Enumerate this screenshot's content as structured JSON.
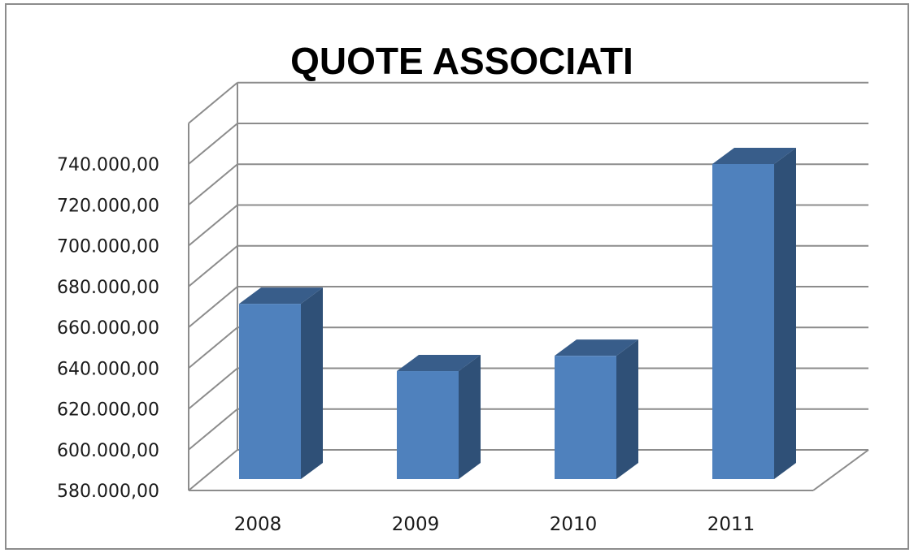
{
  "chart_data": {
    "type": "bar",
    "title": "QUOTE ASSOCIATI",
    "xlabel": "",
    "ylabel": "",
    "categories": [
      "2008",
      "2009",
      "2010",
      "2011"
    ],
    "series": [
      {
        "values": [
          671500,
          638500,
          646000,
          740000
        ]
      }
    ],
    "ylim": [
      580000,
      740000
    ],
    "ytick_step": 20000,
    "ytick_labels": [
      "580.000,00",
      "600.000,00",
      "620.000,00",
      "640.000,00",
      "660.000,00",
      "680.000,00",
      "700.000,00",
      "720.000,00",
      "740.000,00"
    ],
    "grid": true,
    "legend": "none",
    "style": "3d-column",
    "colors": {
      "bar_front": "#4f81bd",
      "bar_side": "#2f5077",
      "bar_top": "#385d8a",
      "grid": "#8c8c8c"
    }
  }
}
